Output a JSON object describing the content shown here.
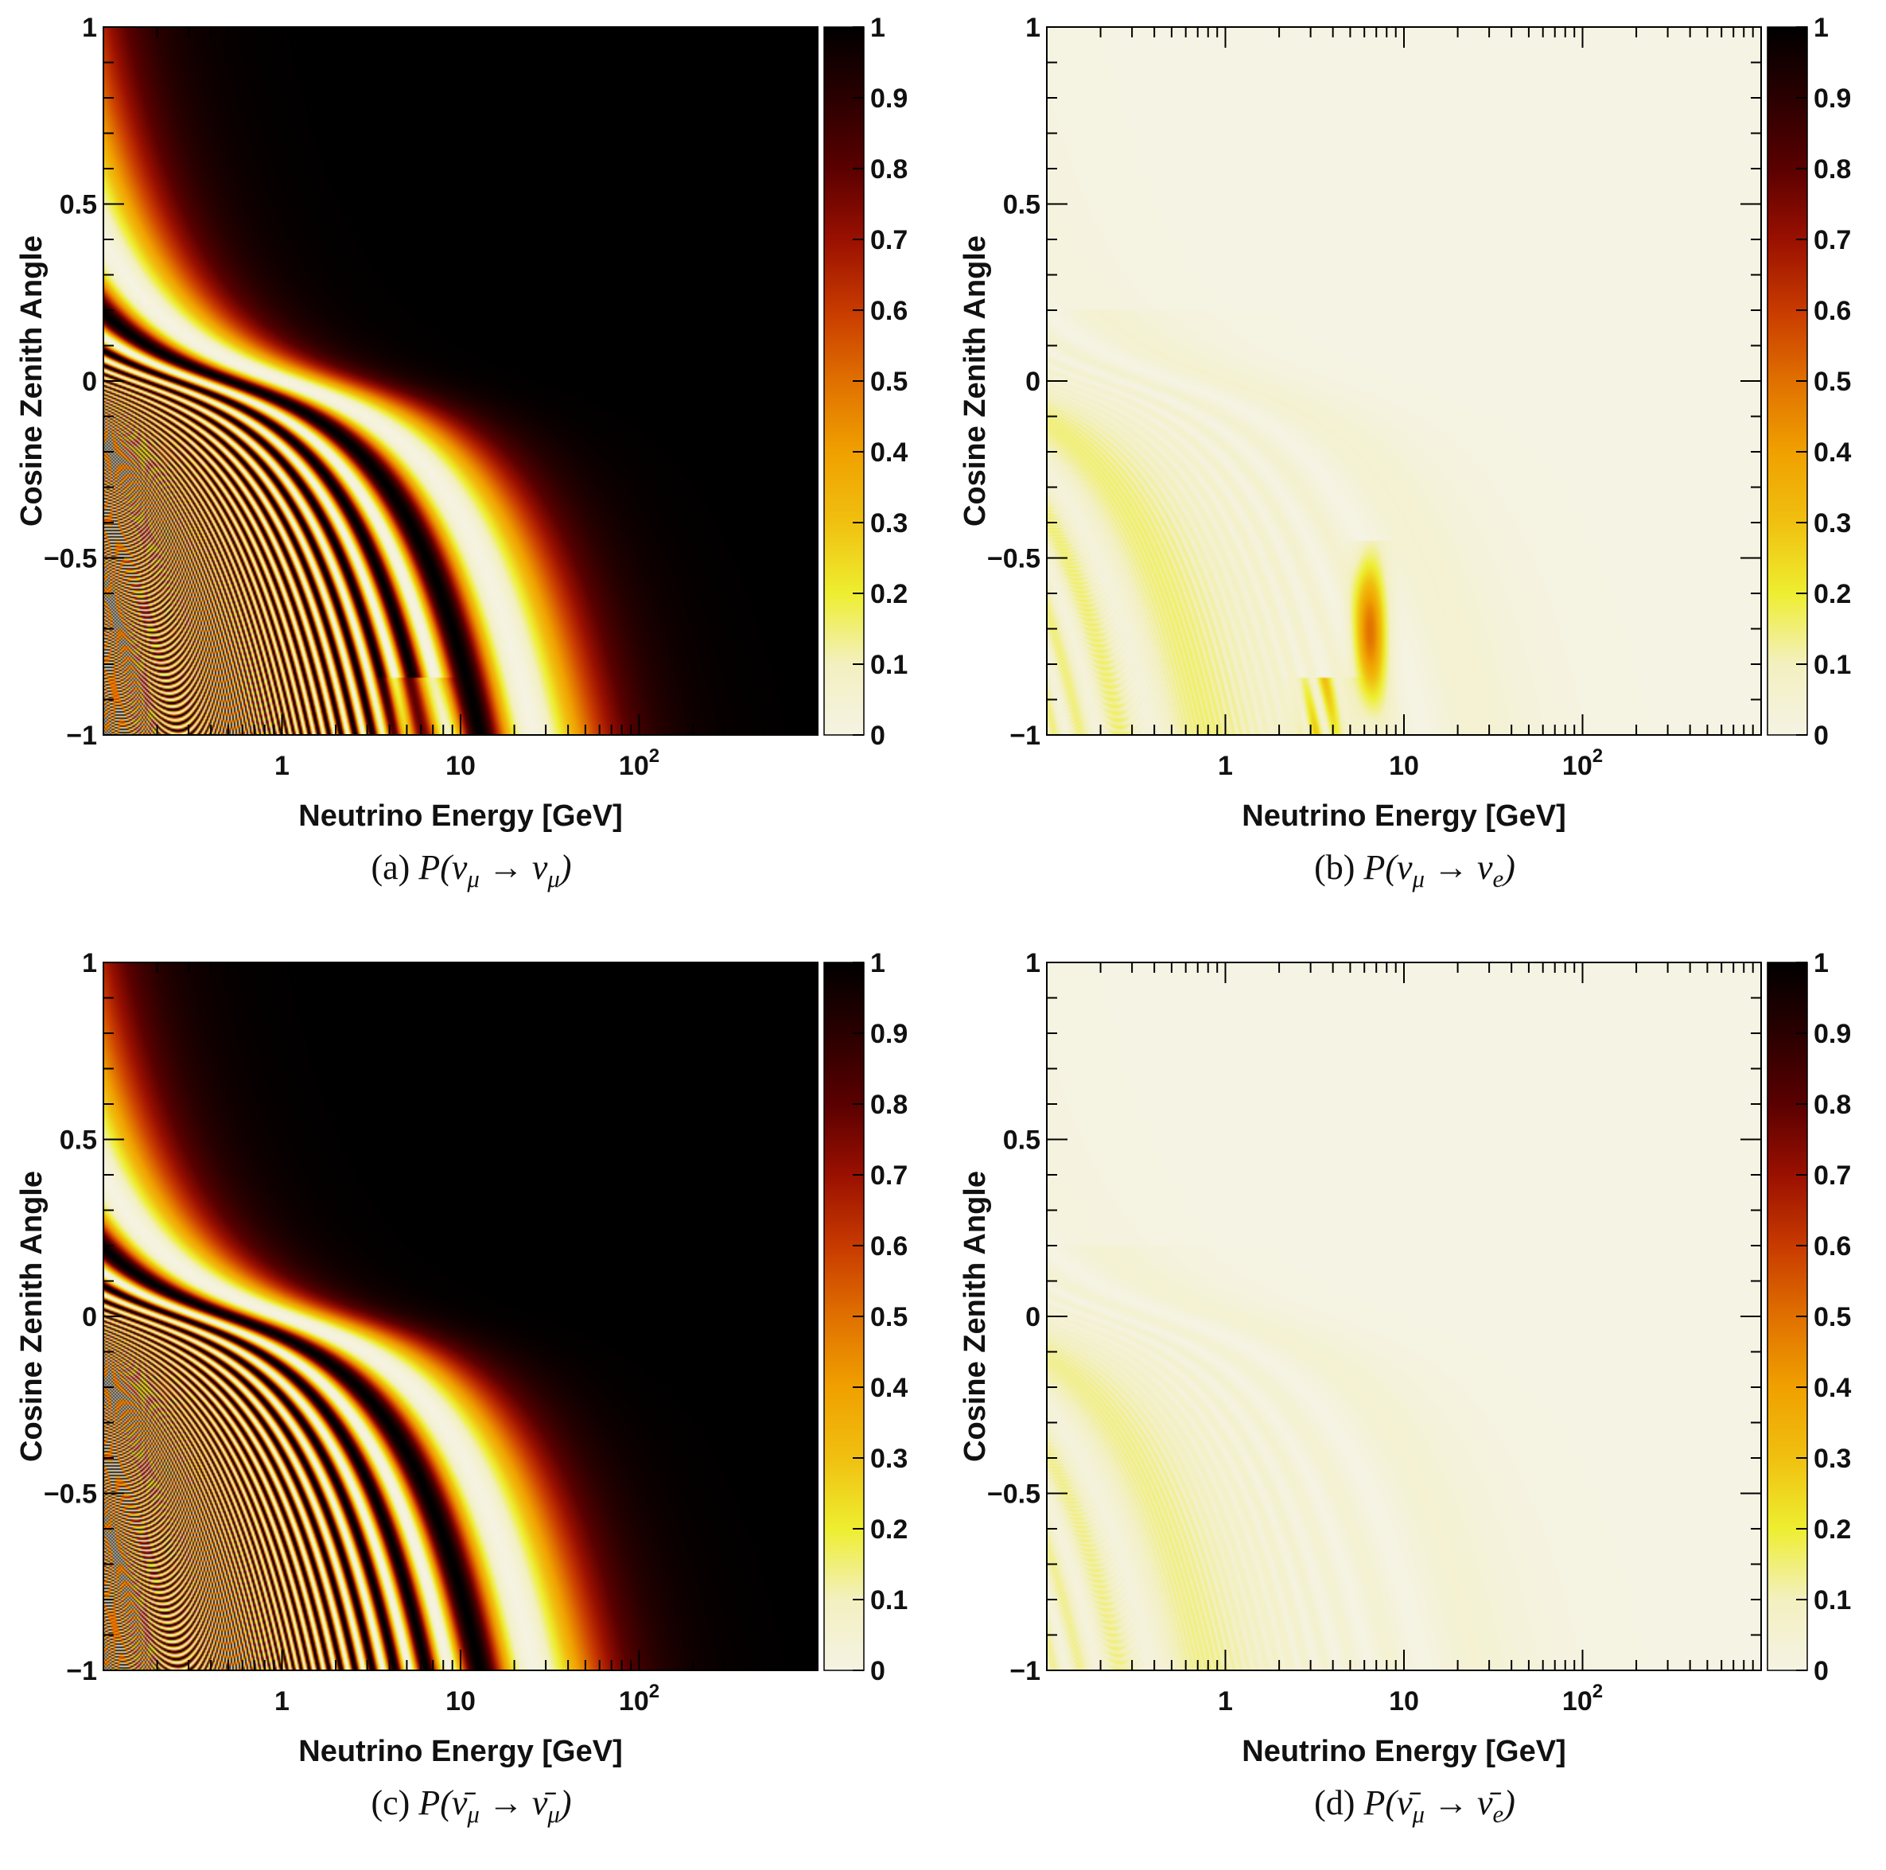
{
  "chart_data": [
    {
      "type": "heatmap",
      "panel": "a",
      "caption_prefix": "(a)",
      "caption_formula": "P(νμ → νμ)",
      "xlabel": "Neutrino Energy [GeV]",
      "ylabel": "Cosine Zenith Angle",
      "xscale": "log",
      "xlim": [
        0.1,
        1000
      ],
      "ylim": [
        -1,
        1
      ],
      "xticks": [
        {
          "v": 1,
          "label": "1"
        },
        {
          "v": 10,
          "label": "10"
        },
        {
          "v": 100,
          "label": "10",
          "sup": "2"
        }
      ],
      "yticks": [
        {
          "v": 1,
          "label": "1"
        },
        {
          "v": 0.5,
          "label": "0.5"
        },
        {
          "v": 0,
          "label": "0"
        },
        {
          "v": -0.5,
          "label": "−0.5"
        },
        {
          "v": -1,
          "label": "−1"
        }
      ],
      "zlim": [
        0,
        1
      ],
      "zticks": [
        "0",
        "0.1",
        "0.2",
        "0.3",
        "0.4",
        "0.5",
        "0.6",
        "0.7",
        "0.8",
        "0.9",
        "1"
      ],
      "quantity": "survival",
      "antineutrino": false
    },
    {
      "type": "heatmap",
      "panel": "b",
      "caption_prefix": "(b)",
      "caption_formula": "P(νμ → νe)",
      "xlabel": "Neutrino Energy [GeV]",
      "ylabel": "Cosine Zenith Angle",
      "xscale": "log",
      "xlim": [
        0.1,
        1000
      ],
      "ylim": [
        -1,
        1
      ],
      "xticks": [
        {
          "v": 1,
          "label": "1"
        },
        {
          "v": 10,
          "label": "10"
        },
        {
          "v": 100,
          "label": "10",
          "sup": "2"
        }
      ],
      "yticks": [
        {
          "v": 1,
          "label": "1"
        },
        {
          "v": 0.5,
          "label": "0.5"
        },
        {
          "v": 0,
          "label": "0"
        },
        {
          "v": -0.5,
          "label": "−0.5"
        },
        {
          "v": -1,
          "label": "−1"
        }
      ],
      "zlim": [
        0,
        1
      ],
      "zticks": [
        "0",
        "0.1",
        "0.2",
        "0.3",
        "0.4",
        "0.5",
        "0.6",
        "0.7",
        "0.8",
        "0.9",
        "1"
      ],
      "quantity": "appearance",
      "antineutrino": false
    },
    {
      "type": "heatmap",
      "panel": "c",
      "caption_prefix": "(c)",
      "caption_formula": "P(ν̄μ → ν̄μ)",
      "xlabel": "Neutrino Energy [GeV]",
      "ylabel": "Cosine Zenith Angle",
      "xscale": "log",
      "xlim": [
        0.1,
        1000
      ],
      "ylim": [
        -1,
        1
      ],
      "xticks": [
        {
          "v": 1,
          "label": "1"
        },
        {
          "v": 10,
          "label": "10"
        },
        {
          "v": 100,
          "label": "10",
          "sup": "2"
        }
      ],
      "yticks": [
        {
          "v": 1,
          "label": "1"
        },
        {
          "v": 0.5,
          "label": "0.5"
        },
        {
          "v": 0,
          "label": "0"
        },
        {
          "v": -0.5,
          "label": "−0.5"
        },
        {
          "v": -1,
          "label": "−1"
        }
      ],
      "zlim": [
        0,
        1
      ],
      "zticks": [
        "0",
        "0.1",
        "0.2",
        "0.3",
        "0.4",
        "0.5",
        "0.6",
        "0.7",
        "0.8",
        "0.9",
        "1"
      ],
      "quantity": "survival",
      "antineutrino": true
    },
    {
      "type": "heatmap",
      "panel": "d",
      "caption_prefix": "(d)",
      "caption_formula": "P(ν̄μ → ν̄e)",
      "xlabel": "Neutrino Energy [GeV]",
      "ylabel": "Cosine Zenith Angle",
      "xscale": "log",
      "xlim": [
        0.1,
        1000
      ],
      "ylim": [
        -1,
        1
      ],
      "xticks": [
        {
          "v": 1,
          "label": "1"
        },
        {
          "v": 10,
          "label": "10"
        },
        {
          "v": 100,
          "label": "10",
          "sup": "2"
        }
      ],
      "yticks": [
        {
          "v": 1,
          "label": "1"
        },
        {
          "v": 0.5,
          "label": "0.5"
        },
        {
          "v": 0,
          "label": "0"
        },
        {
          "v": -0.5,
          "label": "−0.5"
        },
        {
          "v": -1,
          "label": "−1"
        }
      ],
      "zlim": [
        0,
        1
      ],
      "zticks": [
        "0",
        "0.1",
        "0.2",
        "0.3",
        "0.4",
        "0.5",
        "0.6",
        "0.7",
        "0.8",
        "0.9",
        "1"
      ],
      "quantity": "appearance",
      "antineutrino": true
    }
  ],
  "colors": {
    "palette": [
      "#f5f3e3",
      "#f3f0c0",
      "#eeee30",
      "#f0c010",
      "#f0a000",
      "#e07000",
      "#c83a00",
      "#9a1000",
      "#5a0000",
      "#2a0000",
      "#000000"
    ]
  },
  "captions": [
    {
      "label": "(a)",
      "math": "P(ν",
      "sub1": "μ",
      "arrow": " → ν",
      "sub2": "μ",
      "close": ")"
    },
    {
      "label": "(b)",
      "math": "P(ν",
      "sub1": "μ",
      "arrow": " → ν",
      "sub2": "e",
      "close": ")"
    },
    {
      "label": "(c)",
      "math": "P(ν̄",
      "sub1": "μ",
      "arrow": " → ν̄",
      "sub2": "μ",
      "close": ")"
    },
    {
      "label": "(d)",
      "math": "P(ν̄",
      "sub1": "μ",
      "arrow": " → ν̄",
      "sub2": "e",
      "close": ")"
    }
  ]
}
